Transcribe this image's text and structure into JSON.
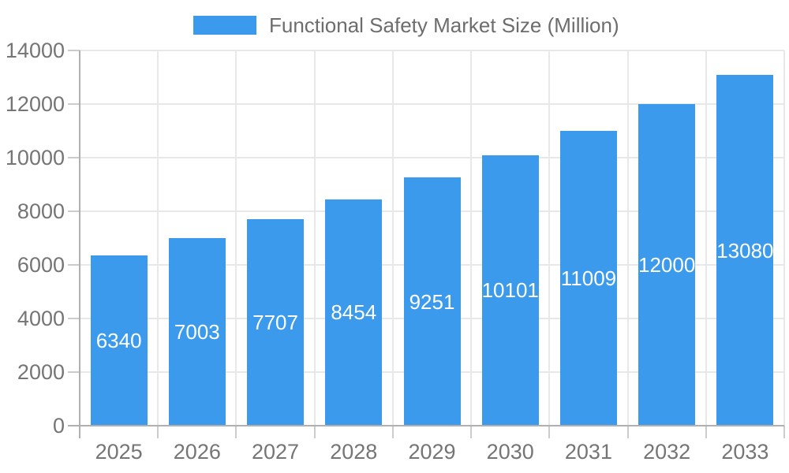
{
  "chart_data": {
    "type": "bar",
    "title": "Functional Safety Market Size (Million)",
    "categories": [
      "2025",
      "2026",
      "2027",
      "2028",
      "2029",
      "2030",
      "2031",
      "2032",
      "2033"
    ],
    "series": [
      {
        "name": "Functional Safety Market Size (Million)",
        "values": [
          6340,
          7003,
          7707,
          8454,
          9251,
          10101,
          11009,
          12000,
          13080
        ]
      }
    ],
    "data_labels_shown": true,
    "xlabel": "",
    "ylabel": "",
    "ylim": [
      0,
      14000
    ],
    "yticks": [
      0,
      2000,
      4000,
      6000,
      8000,
      10000,
      12000,
      14000
    ],
    "grid": true,
    "legend_position": "top-center",
    "colors": {
      "bar": "#3b9aec",
      "data_label_text": "#ffffff",
      "axis_text": "#757575",
      "legend_text": "#6d6d6d",
      "gridline": "#e8e8e8",
      "axis_line": "#b0b0b0",
      "tick": "#cccccc",
      "background": "#ffffff"
    }
  }
}
